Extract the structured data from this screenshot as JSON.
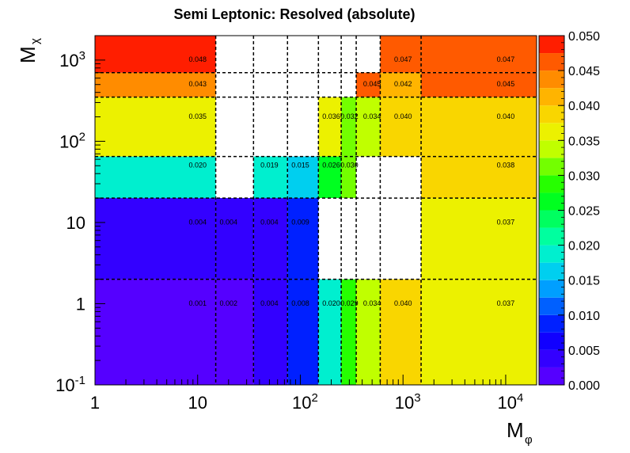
{
  "chart_data": {
    "type": "heatmap",
    "title": "Semi Leptonic: Resolved (absolute)",
    "xlabel": {
      "main": "M",
      "sub": "φ"
    },
    "ylabel": {
      "main": "M",
      "sub": "χ"
    },
    "x_scale": "log",
    "y_scale": "log",
    "xlim": [
      1,
      20000
    ],
    "ylim": [
      0.1,
      2000
    ],
    "x_ticks": [
      {
        "value": 1,
        "base": "1",
        "exp": ""
      },
      {
        "value": 10,
        "base": "10",
        "exp": ""
      },
      {
        "value": 100,
        "base": "10",
        "exp": "2"
      },
      {
        "value": 1000,
        "base": "10",
        "exp": "3"
      },
      {
        "value": 10000,
        "base": "10",
        "exp": "4"
      }
    ],
    "y_ticks": [
      {
        "value": 0.1,
        "base": "10",
        "exp": "-1"
      },
      {
        "value": 1,
        "base": "1",
        "exp": ""
      },
      {
        "value": 10,
        "base": "10",
        "exp": ""
      },
      {
        "value": 100,
        "base": "10",
        "exp": "2"
      },
      {
        "value": 1000,
        "base": "10",
        "exp": "3"
      }
    ],
    "x_edges": [
      1,
      15,
      35,
      75,
      150,
      250,
      350,
      600,
      1500,
      20000
    ],
    "y_edges": [
      0.1,
      2,
      20,
      65,
      350,
      700,
      2000
    ],
    "z_range": [
      0,
      0.05
    ],
    "palette_ticks": [
      "0.000",
      "0.005",
      "0.010",
      "0.015",
      "0.020",
      "0.025",
      "0.030",
      "0.035",
      "0.040",
      "0.045",
      "0.050"
    ],
    "cells": [
      {
        "x0": 1,
        "x1": 15,
        "y0": 0.1,
        "y1": 2,
        "value": 0.001,
        "label": "0.001",
        "lx": 10,
        "ly": 1
      },
      {
        "x0": 15,
        "x1": 35,
        "y0": 0.1,
        "y1": 2,
        "value": 0.002,
        "label": "0.002",
        "lx": 20,
        "ly": 1
      },
      {
        "x0": 35,
        "x1": 75,
        "y0": 0.1,
        "y1": 2,
        "value": 0.004,
        "label": "0.004",
        "lx": 50,
        "ly": 1
      },
      {
        "x0": 75,
        "x1": 150,
        "y0": 0.1,
        "y1": 2,
        "value": 0.008,
        "label": "0.008",
        "lx": 100,
        "ly": 1
      },
      {
        "x0": 150,
        "x1": 250,
        "y0": 0.1,
        "y1": 2,
        "value": 0.02,
        "label": "0.020",
        "lx": 200,
        "ly": 1
      },
      {
        "x0": 250,
        "x1": 350,
        "y0": 0.1,
        "y1": 2,
        "value": 0.029,
        "label": "0.029",
        "lx": 300,
        "ly": 1
      },
      {
        "x0": 350,
        "x1": 600,
        "y0": 0.1,
        "y1": 2,
        "value": 0.034,
        "label": "0.034",
        "lx": 500,
        "ly": 1
      },
      {
        "x0": 600,
        "x1": 1500,
        "y0": 0.1,
        "y1": 2,
        "value": 0.04,
        "label": "0.040",
        "lx": 1000,
        "ly": 1
      },
      {
        "x0": 1500,
        "x1": 20000,
        "y0": 0.1,
        "y1": 2,
        "value": 0.037,
        "label": "0.037",
        "lx": 10000,
        "ly": 1
      },
      {
        "x0": 1,
        "x1": 15,
        "y0": 2,
        "y1": 20,
        "value": 0.004,
        "label": "0.004",
        "lx": 10,
        "ly": 10
      },
      {
        "x0": 15,
        "x1": 35,
        "y0": 2,
        "y1": 20,
        "value": 0.004,
        "label": "0.004",
        "lx": 20,
        "ly": 10
      },
      {
        "x0": 35,
        "x1": 75,
        "y0": 2,
        "y1": 20,
        "value": 0.004,
        "label": "0.004",
        "lx": 50,
        "ly": 10
      },
      {
        "x0": 75,
        "x1": 150,
        "y0": 2,
        "y1": 20,
        "value": 0.009,
        "label": "0.009",
        "lx": 100,
        "ly": 10
      },
      {
        "x0": 1500,
        "x1": 20000,
        "y0": 2,
        "y1": 20,
        "value": 0.037,
        "label": "0.037",
        "lx": 10000,
        "ly": 10
      },
      {
        "x0": 1,
        "x1": 15,
        "y0": 20,
        "y1": 65,
        "value": 0.02,
        "label": "0.020",
        "lx": 10,
        "ly": 50
      },
      {
        "x0": 35,
        "x1": 75,
        "y0": 20,
        "y1": 65,
        "value": 0.019,
        "label": "0.019",
        "lx": 50,
        "ly": 50
      },
      {
        "x0": 75,
        "x1": 150,
        "y0": 20,
        "y1": 65,
        "value": 0.015,
        "label": "0.015",
        "lx": 100,
        "ly": 50
      },
      {
        "x0": 150,
        "x1": 250,
        "y0": 20,
        "y1": 65,
        "value": 0.026,
        "label": "0.026",
        "lx": 200,
        "ly": 50
      },
      {
        "x0": 250,
        "x1": 350,
        "y0": 20,
        "y1": 65,
        "value": 0.03,
        "label": "0.030",
        "lx": 300,
        "ly": 50
      },
      {
        "x0": 1500,
        "x1": 20000,
        "y0": 20,
        "y1": 65,
        "value": 0.038,
        "label": "0.038",
        "lx": 10000,
        "ly": 50
      },
      {
        "x0": 1,
        "x1": 15,
        "y0": 65,
        "y1": 350,
        "value": 0.035,
        "label": "0.035",
        "lx": 10,
        "ly": 200
      },
      {
        "x0": 150,
        "x1": 250,
        "y0": 65,
        "y1": 350,
        "value": 0.036,
        "label": "0.036",
        "lx": 200,
        "ly": 200
      },
      {
        "x0": 250,
        "x1": 350,
        "y0": 65,
        "y1": 350,
        "value": 0.032,
        "label": "0.032",
        "lx": 300,
        "ly": 200
      },
      {
        "x0": 350,
        "x1": 600,
        "y0": 65,
        "y1": 350,
        "value": 0.034,
        "label": "0.034",
        "lx": 500,
        "ly": 200
      },
      {
        "x0": 600,
        "x1": 1500,
        "y0": 65,
        "y1": 350,
        "value": 0.04,
        "label": "0.040",
        "lx": 1000,
        "ly": 200
      },
      {
        "x0": 1500,
        "x1": 20000,
        "y0": 65,
        "y1": 350,
        "value": 0.04,
        "label": "0.040",
        "lx": 10000,
        "ly": 200
      },
      {
        "x0": 1,
        "x1": 15,
        "y0": 350,
        "y1": 700,
        "value": 0.043,
        "label": "0.043",
        "lx": 10,
        "ly": 500
      },
      {
        "x0": 350,
        "x1": 600,
        "y0": 350,
        "y1": 700,
        "value": 0.045,
        "label": "0.045",
        "lx": 500,
        "ly": 500
      },
      {
        "x0": 600,
        "x1": 1500,
        "y0": 350,
        "y1": 700,
        "value": 0.042,
        "label": "0.042",
        "lx": 1000,
        "ly": 500
      },
      {
        "x0": 1500,
        "x1": 20000,
        "y0": 350,
        "y1": 700,
        "value": 0.045,
        "label": "0.045",
        "lx": 10000,
        "ly": 500
      },
      {
        "x0": 1,
        "x1": 15,
        "y0": 700,
        "y1": 2000,
        "value": 0.048,
        "label": "0.048",
        "lx": 10,
        "ly": 1000
      },
      {
        "x0": 600,
        "x1": 1500,
        "y0": 700,
        "y1": 2000,
        "value": 0.047,
        "label": "0.047",
        "lx": 1000,
        "ly": 1000
      },
      {
        "x0": 1500,
        "x1": 20000,
        "y0": 700,
        "y1": 2000,
        "value": 0.047,
        "label": "0.047",
        "lx": 10000,
        "ly": 1000
      }
    ],
    "grid": true
  }
}
